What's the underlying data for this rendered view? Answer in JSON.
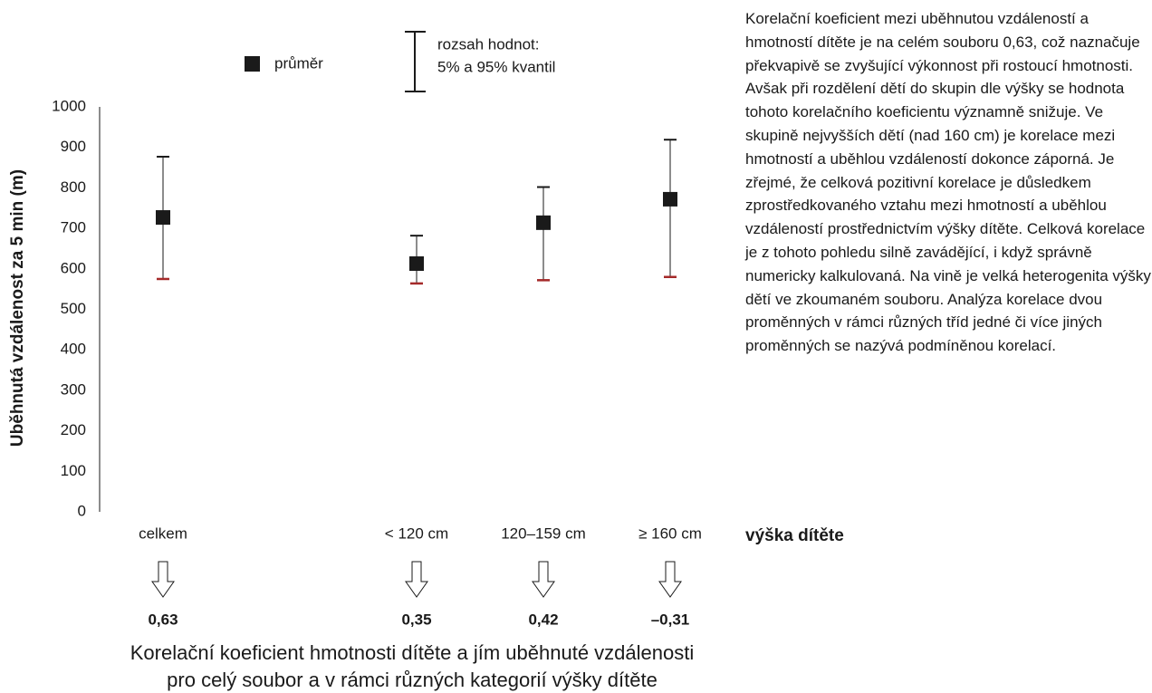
{
  "chart_data": {
    "type": "errorbar",
    "y_label": "Uběhnutá vzdálenost za 5 min (m)",
    "x_label": "výška dítěte",
    "categories": [
      "celkem",
      null,
      "< 120 cm",
      "120–159 cm",
      "≥ 160 cm"
    ],
    "series": [
      {
        "name": "průměr",
        "color": "#1a1a1a",
        "values": [
          727,
          null,
          613,
          714,
          772
        ]
      }
    ],
    "low": [
      575,
      null,
      564,
      572,
      580
    ],
    "high": [
      877,
      null,
      682,
      802,
      919
    ],
    "low_color": "#a52a2a",
    "range_label": [
      "rozsah hodnot:",
      "5% a 95% kvantil"
    ],
    "ylim": [
      0,
      1000
    ],
    "yticks": [
      0,
      100,
      200,
      300,
      400,
      500,
      600,
      700,
      800,
      900,
      1000
    ],
    "grid": false,
    "correlations": {
      "values": [
        0.63,
        null,
        0.35,
        0.42,
        -0.31
      ],
      "value_labels": [
        "0,63",
        null,
        "0,35",
        "0,42",
        "–0,31"
      ]
    },
    "caption": [
      "Korelační koeficient hmotnosti dítěte a jím uběhnuté vzdálenosti",
      "pro celý soubor a v rámci různých kategorií výšky dítěte"
    ]
  },
  "side_text": "Korelační koeficient mezi uběhnutou vzdáleností a hmotností dítěte je na celém souboru 0,63, což naznačuje překvapivě se zvyšující výkonnost při rostoucí hmotnosti. Avšak při rozdělení dětí do skupin dle výšky se hodnota tohoto korelačního koeficientu významně snižuje. Ve skupině nejvyšších dětí (nad 160 cm) je korelace mezi hmotností a uběhlou vzdáleností dokonce záporná. Je zřejmé, že celková pozitivní korelace je důsledkem zprostředkovaného vztahu mezi hmotností a uběhlou vzdáleností prostřednictvím výšky dítěte. Celková korelace je z tohoto pohledu silně zavádějící, i když správně numericky kalkulovaná. Na vině je velká heterogenita výšky dětí ve zkoumaném souboru.  Analýza korelace dvou proměnných v rámci různých tříd jedné či více jiných proměnných se nazývá podmíněnou korelací."
}
